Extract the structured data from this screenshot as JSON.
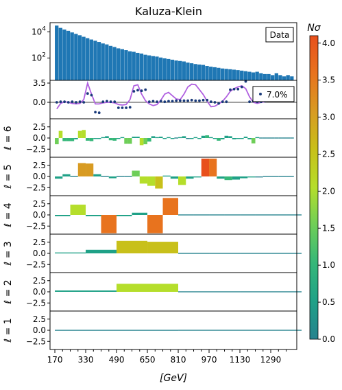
{
  "chart_data": {
    "title": "Kaluza-Klein",
    "xlabel": "[GeV]",
    "x_ticks": [
      170,
      330,
      490,
      650,
      810,
      970,
      1130,
      1290
    ],
    "xlim": [
      145,
      1425
    ],
    "histogram": {
      "type": "bar",
      "yscale": "log",
      "legend": "Data",
      "y_ticks": [
        "10^4",
        "10^2"
      ],
      "bin_width": 20,
      "bin_starts": [
        170,
        190,
        210,
        230,
        250,
        270,
        290,
        310,
        330,
        350,
        370,
        390,
        410,
        430,
        450,
        470,
        490,
        510,
        530,
        550,
        570,
        590,
        610,
        630,
        650,
        670,
        690,
        710,
        730,
        750,
        770,
        790,
        810,
        830,
        850,
        870,
        890,
        910,
        930,
        950,
        970,
        990,
        1010,
        1030,
        1050,
        1070,
        1090,
        1110,
        1130,
        1150,
        1170,
        1190,
        1210,
        1230,
        1250,
        1270,
        1290,
        1310,
        1330,
        1350,
        1370,
        1390
      ],
      "counts": [
        30000,
        20000,
        15000,
        12000,
        9000,
        7000,
        5500,
        4200,
        3300,
        2600,
        2100,
        1700,
        1300,
        1100,
        850,
        700,
        550,
        480,
        400,
        330,
        300,
        250,
        220,
        180,
        160,
        140,
        130,
        110,
        95,
        85,
        75,
        65,
        60,
        55,
        45,
        40,
        35,
        32,
        30,
        25,
        22,
        20,
        18,
        16,
        15,
        14,
        13,
        12,
        11,
        10,
        9,
        8,
        9,
        7,
        6,
        6,
        5,
        7,
        5,
        4,
        5,
        4
      ]
    },
    "significance_panel": {
      "y_ticks": [
        3.5,
        0.0
      ],
      "legend": "7.0%",
      "points_x": [
        170,
        190,
        210,
        230,
        250,
        270,
        290,
        310,
        330,
        350,
        370,
        390,
        410,
        430,
        450,
        470,
        490,
        510,
        530,
        550,
        570,
        590,
        610,
        630,
        650,
        670,
        690,
        710,
        730,
        750,
        770,
        790,
        810,
        830,
        850,
        870,
        890,
        910,
        930,
        950,
        970,
        990,
        1010,
        1030,
        1050,
        1070,
        1090,
        1110,
        1130,
        1150,
        1170,
        1190,
        1210,
        1230,
        1250,
        1270,
        1290,
        1310,
        1330,
        1350,
        1370,
        1390
      ],
      "points_y": [
        0.0,
        0.1,
        0.1,
        0.0,
        0.1,
        0.0,
        0.1,
        0.0,
        1.6,
        1.3,
        -1.8,
        -1.9,
        0.1,
        0.2,
        0.1,
        0.1,
        -1.0,
        -1.0,
        -1.0,
        -0.9,
        2.0,
        2.2,
        2.1,
        2.3,
        0.1,
        0.2,
        0.1,
        0.2,
        0.1,
        0.2,
        0.2,
        0.3,
        0.3,
        0.3,
        0.3,
        0.4,
        0.3,
        0.3,
        0.4,
        0.4,
        0.1,
        0.0,
        -0.2,
        0.1,
        0.1,
        2.3,
        2.4,
        2.4,
        2.8,
        3.8,
        0.1,
        0.2,
        0.1,
        0.1,
        0.2,
        0.4,
        0.8,
        0.9,
        0.8,
        0.9,
        0.8,
        0.9
      ],
      "curve_x": [
        170,
        190,
        210,
        230,
        250,
        270,
        290,
        310,
        330,
        350,
        370,
        390,
        410,
        430,
        450,
        470,
        490,
        510,
        530,
        550,
        570,
        590,
        610,
        630,
        650,
        670,
        690,
        710,
        730,
        750,
        770,
        790,
        810,
        830,
        850,
        870,
        890,
        910,
        930,
        950,
        970,
        990,
        1010,
        1030,
        1050,
        1070,
        1090,
        1110,
        1130,
        1150,
        1170,
        1190,
        1210,
        1230,
        1250,
        1270,
        1290,
        1310,
        1330,
        1350,
        1370,
        1390
      ],
      "curve_y": [
        -1.2,
        -0.2,
        0.1,
        0.0,
        -0.2,
        -0.3,
        -0.2,
        0.5,
        3.5,
        1.5,
        -0.3,
        -0.3,
        -0.1,
        0.0,
        0.0,
        -0.1,
        -0.4,
        -0.5,
        -0.4,
        0.5,
        3.0,
        3.2,
        1.5,
        0.3,
        -0.3,
        -0.6,
        -0.4,
        0.4,
        1.5,
        1.8,
        1.2,
        0.6,
        0.5,
        1.5,
        2.8,
        3.3,
        3.2,
        2.3,
        1.4,
        0.2,
        -0.8,
        -0.7,
        -0.3,
        0.2,
        1.0,
        2.0,
        2.5,
        2.8,
        3.0,
        2.5,
        1.0,
        0.0,
        -0.2,
        0.0,
        0.1,
        0.3,
        0.5,
        0.6,
        0.6,
        0.7,
        0.7,
        0.8
      ]
    },
    "wavelet_panels": [
      {
        "label": "ℓ = 6",
        "y_ticks": [
          2.5,
          0.0,
          -2.5
        ],
        "bars": [
          [
            170,
            20,
            -1.4
          ],
          [
            190,
            20,
            1.6
          ],
          [
            210,
            20,
            -0.7
          ],
          [
            230,
            20,
            -0.7
          ],
          [
            250,
            20,
            -0.7
          ],
          [
            270,
            20,
            -0.3
          ],
          [
            290,
            20,
            1.6
          ],
          [
            310,
            20,
            1.8
          ],
          [
            330,
            20,
            -0.6
          ],
          [
            350,
            20,
            -0.7
          ],
          [
            370,
            20,
            -0.2
          ],
          [
            390,
            20,
            -0.2
          ],
          [
            410,
            20,
            0.2
          ],
          [
            430,
            20,
            0.4
          ],
          [
            450,
            20,
            -0.5
          ],
          [
            470,
            20,
            -0.6
          ],
          [
            490,
            20,
            -0.1
          ],
          [
            510,
            20,
            0.2
          ],
          [
            530,
            20,
            -1.3
          ],
          [
            550,
            20,
            -1.3
          ],
          [
            570,
            20,
            0.3
          ],
          [
            590,
            20,
            0.3
          ],
          [
            610,
            20,
            -1.6
          ],
          [
            630,
            20,
            -1.4
          ],
          [
            650,
            20,
            -0.8
          ],
          [
            670,
            20,
            0.4
          ],
          [
            690,
            20,
            0.2
          ],
          [
            710,
            20,
            0.3
          ],
          [
            730,
            20,
            -0.2
          ],
          [
            750,
            20,
            0.2
          ],
          [
            770,
            20,
            -0.2
          ],
          [
            790,
            20,
            0.0
          ],
          [
            810,
            20,
            0.2
          ],
          [
            830,
            20,
            0.4
          ],
          [
            850,
            20,
            -0.1
          ],
          [
            870,
            20,
            -0.2
          ],
          [
            890,
            20,
            0.2
          ],
          [
            910,
            20,
            -0.2
          ],
          [
            930,
            20,
            0.5
          ],
          [
            950,
            20,
            0.6
          ],
          [
            970,
            20,
            0.2
          ],
          [
            990,
            20,
            -0.2
          ],
          [
            1010,
            20,
            -0.6
          ],
          [
            1030,
            20,
            -0.3
          ],
          [
            1050,
            20,
            0.5
          ],
          [
            1070,
            20,
            0.4
          ],
          [
            1090,
            20,
            -0.3
          ],
          [
            1110,
            20,
            -0.2
          ],
          [
            1130,
            20,
            -0.2
          ],
          [
            1150,
            20,
            0.3
          ],
          [
            1170,
            20,
            -0.3
          ],
          [
            1190,
            20,
            -1.2
          ],
          [
            1210,
            20,
            0.2
          ],
          [
            1230,
            20,
            0.0
          ],
          [
            1250,
            20,
            0.0
          ],
          [
            1270,
            20,
            0.0
          ],
          [
            1290,
            20,
            0.0
          ],
          [
            1310,
            20,
            0.0
          ],
          [
            1330,
            20,
            0.0
          ],
          [
            1350,
            20,
            0.0
          ],
          [
            1370,
            20,
            0.0
          ],
          [
            1390,
            20,
            0.0
          ]
        ],
        "sigma": [
          1.5,
          1.9,
          1.0,
          1.0,
          1.0,
          0.5,
          1.9,
          2.2,
          0.8,
          1.0,
          0.4,
          0.4,
          0.4,
          0.6,
          0.8,
          0.9,
          0.3,
          0.3,
          1.5,
          1.5,
          0.4,
          0.4,
          1.9,
          1.7,
          1.1,
          0.6,
          0.4,
          0.5,
          0.3,
          0.3,
          0.3,
          0.1,
          0.3,
          0.5,
          0.2,
          0.3,
          0.3,
          0.3,
          0.7,
          0.8,
          0.3,
          0.3,
          0.8,
          0.5,
          0.7,
          0.6,
          0.5,
          0.3,
          0.3,
          0.4,
          0.5,
          1.5,
          0.3,
          0.1,
          0.1,
          0.1,
          0.1,
          0.1,
          0.1,
          0.1,
          0.1,
          0.1
        ]
      },
      {
        "label": "ℓ = 5",
        "y_ticks": [
          2.5,
          0.0,
          -2.5
        ],
        "bars": [
          [
            170,
            40,
            -0.5
          ],
          [
            210,
            40,
            0.5
          ],
          [
            250,
            40,
            0.1
          ],
          [
            290,
            40,
            3.0
          ],
          [
            330,
            40,
            2.9
          ],
          [
            370,
            40,
            0.5
          ],
          [
            410,
            40,
            0.1
          ],
          [
            450,
            40,
            -0.4
          ],
          [
            490,
            40,
            0.1
          ],
          [
            530,
            40,
            0.1
          ],
          [
            570,
            40,
            1.3
          ],
          [
            610,
            40,
            -1.6
          ],
          [
            650,
            40,
            -2.1
          ],
          [
            690,
            40,
            -2.7
          ],
          [
            730,
            40,
            0.2
          ],
          [
            770,
            40,
            -0.5
          ],
          [
            810,
            40,
            -1.9
          ],
          [
            850,
            40,
            -0.5
          ],
          [
            890,
            40,
            -0.2
          ],
          [
            930,
            40,
            4.0
          ],
          [
            970,
            40,
            4.0
          ],
          [
            1010,
            40,
            -0.5
          ],
          [
            1050,
            40,
            -0.8
          ],
          [
            1090,
            40,
            -0.7
          ],
          [
            1130,
            40,
            -0.4
          ],
          [
            1170,
            40,
            -0.2
          ],
          [
            1210,
            40,
            -0.2
          ],
          [
            1250,
            40,
            0.0
          ],
          [
            1290,
            40,
            0.0
          ],
          [
            1330,
            40,
            0.0
          ],
          [
            1370,
            40,
            0.0
          ]
        ],
        "sigma": [
          0.4,
          0.6,
          0.2,
          3.3,
          2.9,
          0.6,
          0.2,
          0.4,
          0.2,
          0.2,
          1.4,
          1.8,
          2.0,
          2.8,
          0.4,
          0.5,
          1.9,
          0.6,
          0.3,
          4.0,
          3.6,
          0.5,
          0.8,
          0.7,
          0.5,
          0.3,
          0.2,
          0.1,
          0.1,
          0.1,
          0.1
        ]
      },
      {
        "label": "ℓ = 4",
        "y_ticks": [
          2.5,
          0.0,
          -2.5
        ],
        "bars": [
          [
            170,
            80,
            -0.3
          ],
          [
            250,
            80,
            2.3
          ],
          [
            330,
            80,
            -0.3
          ],
          [
            410,
            80,
            -4.1
          ],
          [
            490,
            80,
            -0.3
          ],
          [
            570,
            80,
            0.5
          ],
          [
            650,
            80,
            -4.1
          ],
          [
            730,
            80,
            3.8
          ],
          [
            810,
            80,
            0.0
          ],
          [
            890,
            80,
            0.0
          ],
          [
            970,
            80,
            0.0
          ],
          [
            1050,
            80,
            0.0
          ],
          [
            1130,
            80,
            0.0
          ],
          [
            1210,
            80,
            0.0
          ],
          [
            1290,
            80,
            0.0
          ],
          [
            1370,
            80,
            0.0
          ]
        ],
        "sigma": [
          0.4,
          2.2,
          0.4,
          3.8,
          0.4,
          0.5,
          3.8,
          3.5,
          0.1,
          0.1,
          0.1,
          0.1,
          0.1,
          0.1,
          0.1,
          0.1
        ]
      },
      {
        "label": "ℓ = 3",
        "y_ticks": [
          2.5,
          0.0,
          -2.5
        ],
        "bars": [
          [
            170,
            160,
            0.2
          ],
          [
            330,
            160,
            0.8
          ],
          [
            490,
            160,
            2.8
          ],
          [
            650,
            160,
            2.6
          ],
          [
            810,
            160,
            0.0
          ],
          [
            970,
            160,
            0.0
          ],
          [
            1130,
            160,
            0.0
          ],
          [
            1290,
            160,
            0.0
          ]
        ],
        "sigma": [
          0.3,
          0.7,
          2.8,
          2.6,
          0.1,
          0.1,
          0.1,
          0.1
        ]
      },
      {
        "label": "ℓ = 2",
        "y_ticks": [
          2.5,
          0.0,
          -2.5
        ],
        "bars": [
          [
            170,
            320,
            0.3
          ],
          [
            490,
            320,
            1.8
          ],
          [
            810,
            320,
            0.0
          ],
          [
            1130,
            320,
            0.0
          ]
        ],
        "sigma": [
          0.3,
          1.8,
          0.1,
          0.1
        ]
      },
      {
        "label": "ℓ = 1",
        "y_ticks": [
          2.5,
          0.0,
          -2.5
        ],
        "bars": [
          [
            170,
            640,
            0.1
          ],
          [
            810,
            640,
            0.0
          ]
        ],
        "sigma": [
          0.2,
          0.1
        ]
      }
    ],
    "colorbar": {
      "label": "Nσ",
      "ticks": [
        "0.0",
        "0.5",
        "1.0",
        "1.5",
        "2.0",
        "2.5",
        "3.0",
        "3.5",
        "4.0"
      ],
      "range": [
        0,
        4.1
      ],
      "colors": [
        "#26828e",
        "#1fa187",
        "#35b779",
        "#6ece58",
        "#b5de2b",
        "#c8c01a",
        "#d89b22",
        "#e8731e",
        "#e8501c"
      ]
    }
  }
}
